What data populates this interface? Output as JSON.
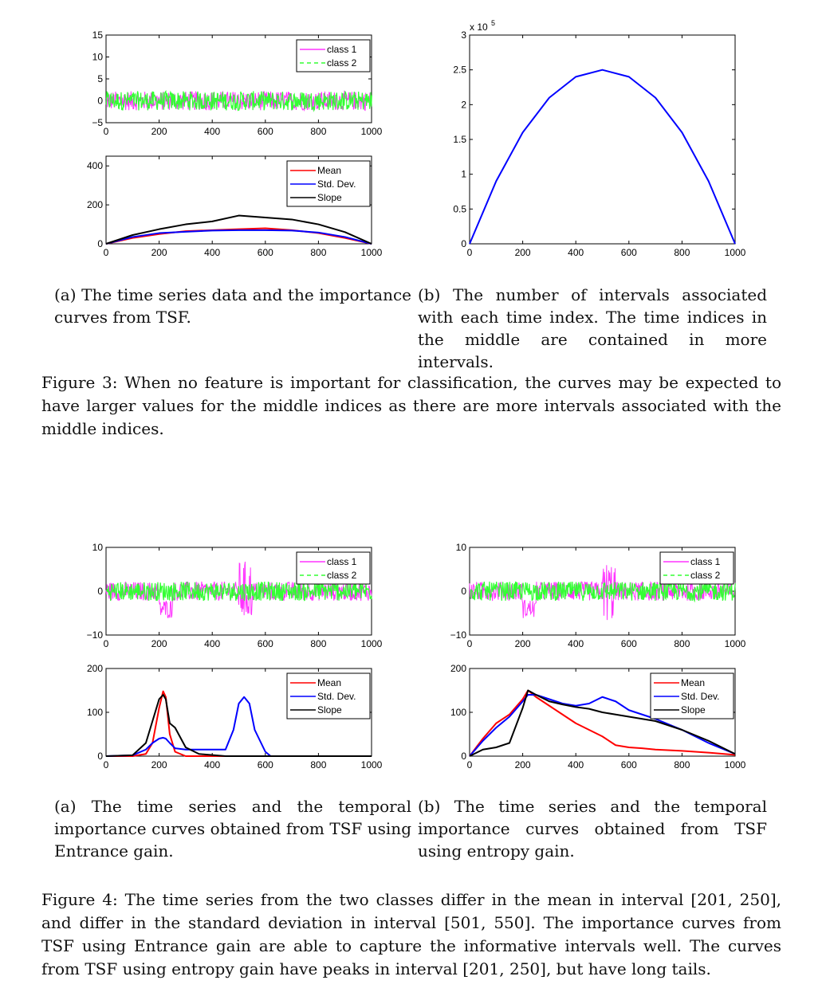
{
  "figure3": {
    "subcaption_a": "(a) The time series data and the importance curves from TSF.",
    "subcaption_b": "(b) The number of intervals associated with each time index. The time indices in the middle are contained in more intervals.",
    "caption": "Figure 3: When no feature is important for classification, the curves may be expected to have larger values for the middle indices as there are more intervals associated with the middle indices."
  },
  "figure4": {
    "subcaption_a": "(a) The time series and the temporal importance curves obtained from TSF using Entrance gain.",
    "subcaption_b": "(b) The time series and the temporal importance curves obtained from TSF using entropy gain.",
    "caption": "Figure 4: The time series from the two classes differ in the mean in interval [201, 250], and differ in the standard deviation in interval [501, 550]. The importance curves from TSF using Entrance gain are able to capture the informative intervals well. The curves from TSF using entropy gain have peaks in interval [201, 250], but have long tails."
  },
  "colors": {
    "class1": "#ff33ff",
    "class2": "#33ff33",
    "mean": "#ff0000",
    "std": "#0000ff",
    "slope": "#000000"
  },
  "chart_data": [
    {
      "id": "f3a-top",
      "type": "line",
      "xlim": [
        0,
        1000
      ],
      "ylim": [
        -5,
        15
      ],
      "xticks": [
        "0",
        "200",
        "400",
        "600",
        "800",
        "1000"
      ],
      "yticks": [
        "-5",
        "0",
        "5",
        "10",
        "15"
      ],
      "legend": [
        "class 1",
        "class 2"
      ],
      "legend_position": "top-right",
      "series": [
        {
          "name": "class 1",
          "desc_values": "noise around 0 with amplitude about ±3"
        },
        {
          "name": "class 2",
          "desc_values": "noise around 0 with amplitude about ±3"
        }
      ]
    },
    {
      "id": "f3a-bottom",
      "type": "line",
      "xlim": [
        0,
        1000
      ],
      "ylim": [
        0,
        450
      ],
      "xticks": [
        "0",
        "200",
        "400",
        "600",
        "800",
        "1000"
      ],
      "yticks": [
        "0",
        "200",
        "400"
      ],
      "legend": [
        "Mean",
        "Std. Dev.",
        "Slope"
      ],
      "legend_position": "top-right",
      "x": [
        0,
        100,
        200,
        300,
        400,
        500,
        600,
        700,
        800,
        900,
        1000
      ],
      "series": [
        {
          "name": "Mean",
          "values": [
            0,
            30,
            50,
            65,
            70,
            75,
            80,
            70,
            55,
            30,
            0
          ]
        },
        {
          "name": "Std. Dev.",
          "values": [
            0,
            35,
            55,
            62,
            68,
            70,
            70,
            68,
            58,
            35,
            0
          ]
        },
        {
          "name": "Slope",
          "values": [
            0,
            45,
            75,
            100,
            115,
            145,
            135,
            125,
            100,
            60,
            0
          ]
        }
      ]
    },
    {
      "id": "f3b",
      "type": "line",
      "xlim": [
        0,
        1000
      ],
      "ylim": [
        0,
        3
      ],
      "xticks": [
        "0",
        "200",
        "400",
        "600",
        "800",
        "1000"
      ],
      "yticks": [
        "0",
        "0.5",
        "1",
        "1.5",
        "2",
        "2.5",
        "3"
      ],
      "y_scale_label": "x 10^5",
      "x": [
        0,
        100,
        200,
        300,
        400,
        500,
        600,
        700,
        800,
        900,
        1000
      ],
      "series": [
        {
          "name": "",
          "values": [
            0,
            0.9,
            1.6,
            2.1,
            2.4,
            2.5,
            2.4,
            2.1,
            1.6,
            0.9,
            0
          ]
        }
      ]
    },
    {
      "id": "f4a-top",
      "type": "line",
      "xlim": [
        0,
        1000
      ],
      "ylim": [
        -10,
        10
      ],
      "xticks": [
        "0",
        "200",
        "400",
        "600",
        "800",
        "1000"
      ],
      "yticks": [
        "-10",
        "0",
        "10"
      ],
      "legend": [
        "class 1",
        "class 2"
      ],
      "legend_position": "top-right"
    },
    {
      "id": "f4a-bottom",
      "type": "line",
      "xlim": [
        0,
        1000
      ],
      "ylim": [
        0,
        200
      ],
      "xticks": [
        "0",
        "200",
        "400",
        "600",
        "800",
        "1000"
      ],
      "yticks": [
        "0",
        "100",
        "200"
      ],
      "legend": [
        "Mean",
        "Std. Dev.",
        "Slope"
      ],
      "legend_position": "top-right",
      "x": [
        0,
        100,
        150,
        175,
        200,
        215,
        225,
        240,
        260,
        300,
        350,
        450,
        480,
        500,
        520,
        540,
        560,
        600,
        620,
        700,
        1000
      ],
      "series": [
        {
          "name": "Mean",
          "values": [
            0,
            0,
            5,
            30,
            110,
            148,
            135,
            50,
            10,
            0,
            0,
            0,
            0,
            0,
            0,
            0,
            0,
            0,
            0,
            0,
            0
          ]
        },
        {
          "name": "Std. Dev.",
          "values": [
            0,
            2,
            15,
            30,
            40,
            42,
            40,
            30,
            18,
            15,
            15,
            15,
            60,
            120,
            135,
            120,
            60,
            10,
            0,
            0,
            0
          ]
        },
        {
          "name": "Slope",
          "values": [
            0,
            2,
            30,
            80,
            130,
            140,
            130,
            75,
            65,
            20,
            5,
            0,
            0,
            0,
            0,
            0,
            0,
            0,
            0,
            0,
            0
          ]
        }
      ]
    },
    {
      "id": "f4b-top",
      "type": "line",
      "xlim": [
        0,
        1000
      ],
      "ylim": [
        -10,
        10
      ],
      "xticks": [
        "0",
        "200",
        "400",
        "600",
        "800",
        "1000"
      ],
      "yticks": [
        "-10",
        "0",
        "10"
      ],
      "legend": [
        "class 1",
        "class 2"
      ],
      "legend_position": "top-right"
    },
    {
      "id": "f4b-bottom",
      "type": "line",
      "xlim": [
        0,
        1000
      ],
      "ylim": [
        0,
        200
      ],
      "xticks": [
        "0",
        "200",
        "400",
        "600",
        "800",
        "1000"
      ],
      "yticks": [
        "0",
        "100",
        "200"
      ],
      "legend": [
        "Mean",
        "Std. Dev.",
        "Slope"
      ],
      "legend_position": "top-right",
      "x": [
        0,
        50,
        100,
        150,
        200,
        220,
        250,
        300,
        350,
        400,
        450,
        500,
        550,
        600,
        650,
        700,
        800,
        900,
        1000
      ],
      "series": [
        {
          "name": "Mean",
          "values": [
            0,
            40,
            75,
            95,
            130,
            150,
            135,
            115,
            95,
            75,
            60,
            45,
            25,
            20,
            18,
            15,
            12,
            8,
            3
          ]
        },
        {
          "name": "Std. Dev.",
          "values": [
            0,
            35,
            65,
            90,
            125,
            140,
            140,
            130,
            120,
            115,
            120,
            135,
            125,
            105,
            95,
            85,
            60,
            30,
            5
          ]
        },
        {
          "name": "Slope",
          "values": [
            0,
            15,
            20,
            30,
            110,
            150,
            140,
            125,
            118,
            112,
            108,
            100,
            95,
            90,
            85,
            80,
            60,
            35,
            5
          ]
        }
      ]
    }
  ]
}
